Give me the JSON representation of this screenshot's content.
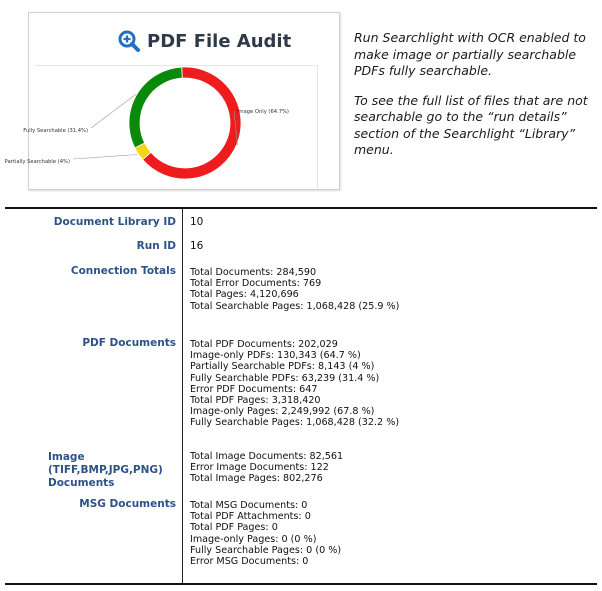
{
  "card": {
    "title": "PDF File Audit",
    "icon": "magnifier-plus-icon",
    "accent": "#1f6fc4"
  },
  "chart_data": {
    "type": "pie",
    "donut": true,
    "slices": [
      {
        "label": "Image Only (64.7%)",
        "value": 64.7,
        "color": "#ee1c1c"
      },
      {
        "label": "Partially Searchable (4%)",
        "value": 4,
        "color": "#f5d516"
      },
      {
        "label": "Fully Searchable (31.4%)",
        "value": 31.4,
        "color": "#0a8a0a"
      }
    ]
  },
  "note": {
    "p1": "Run Searchlight with OCR enabled to make image or partially searchable PDFs fully searchable.",
    "p2": "To see the full list of files that are not searchable go to the “run details” section of the Searchlight “Library” menu."
  },
  "table": {
    "doc_library_label": "Document Library ID",
    "doc_library_value": "10",
    "run_id_label": "Run ID",
    "run_id_value": "16",
    "connection_label": "Connection Totals",
    "connection": [
      "Total Documents: 284,590",
      "Total Error Documents: 769",
      "Total Pages: 4,120,696",
      "Total Searchable Pages: 1,068,428 (25.9 %)"
    ],
    "pdf_label": "PDF Documents",
    "pdf": [
      "Total PDF Documents: 202,029",
      "Image-only PDFs: 130,343 (64.7 %)",
      "Partially Searchable PDFs: 8,143 (4 %)",
      "Fully Searchable PDFs: 63,239 (31.4 %)",
      "Error PDF Documents: 647",
      "Total PDF Pages: 3,318,420",
      "Image-only Pages: 2,249,992 (67.8 %)",
      "Fully Searchable Pages: 1,068,428 (32.2 %)"
    ],
    "image_label": "Image (TIFF,BMP,JPG,PNG) Documents",
    "image": [
      "Total Image Documents: 82,561",
      "Error Image Documents: 122",
      "Total Image Pages: 802,276"
    ],
    "msg_label": "MSG Documents",
    "msg": [
      "Total MSG Documents: 0",
      "Total PDF Attachments: 0",
      "Total PDF Pages: 0",
      "Image-only Pages: 0 (0 %)",
      "Fully Searchable Pages: 0 (0 %)",
      "Error MSG Documents: 0"
    ]
  }
}
